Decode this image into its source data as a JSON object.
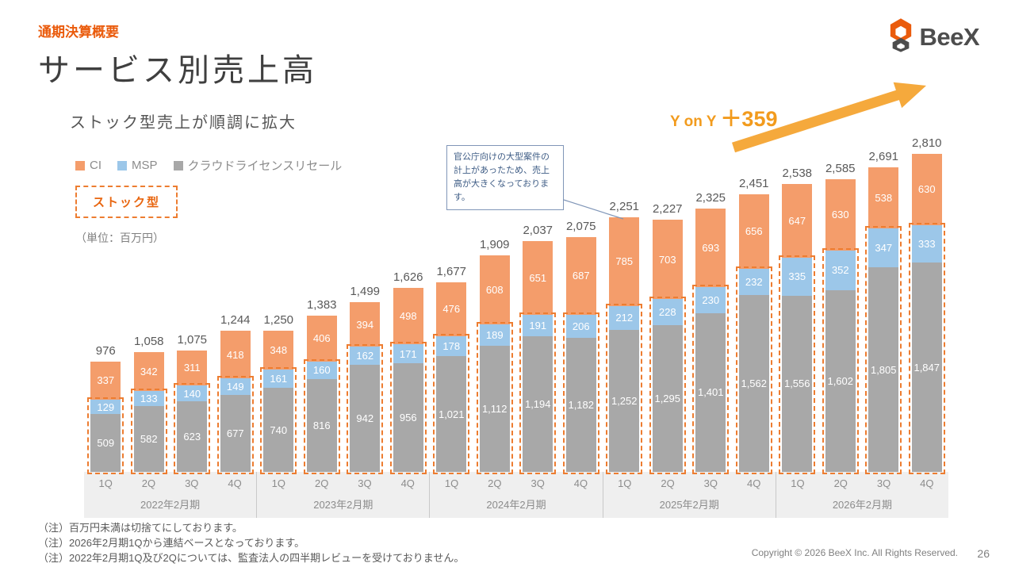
{
  "header": {
    "eyebrow": "通期決算概要",
    "title": "サービス別売上高",
    "subtitle": "ストック型売上が順調に拡大",
    "logo_text": "BeeX"
  },
  "legend": {
    "items": [
      {
        "label": "CI",
        "color": "#F49D6B"
      },
      {
        "label": "MSP",
        "color": "#9CC7E9"
      },
      {
        "label": "クラウドライセンスリセール",
        "color": "#A8A8A8"
      }
    ],
    "stock_label": "ストック型",
    "unit_label": "（単位：百万円）"
  },
  "annotation": {
    "callout_text": "官公庁向けの大型案件の計上があったため、売上高が大きくなっております。",
    "yoy_label": "Y on Y",
    "yoy_value": "＋359",
    "arrow_color": "#F5A93C"
  },
  "chart_data": {
    "type": "bar",
    "stacked": true,
    "unit": "百万円",
    "ylim": [
      0,
      2870
    ],
    "categories": [
      "1Q",
      "2Q",
      "3Q",
      "4Q",
      "1Q",
      "2Q",
      "3Q",
      "4Q",
      "1Q",
      "2Q",
      "3Q",
      "4Q",
      "1Q",
      "2Q",
      "3Q",
      "4Q",
      "1Q",
      "2Q",
      "3Q",
      "4Q"
    ],
    "groups": [
      {
        "label": "2022年2月期",
        "quarters": [
          "1Q",
          "2Q",
          "3Q",
          "4Q"
        ]
      },
      {
        "label": "2023年2月期",
        "quarters": [
          "1Q",
          "2Q",
          "3Q",
          "4Q"
        ]
      },
      {
        "label": "2024年2月期",
        "quarters": [
          "1Q",
          "2Q",
          "3Q",
          "4Q"
        ]
      },
      {
        "label": "2025年2月期",
        "quarters": [
          "1Q",
          "2Q",
          "3Q",
          "4Q"
        ]
      },
      {
        "label": "2026年2月期",
        "quarters": [
          "1Q",
          "2Q",
          "3Q",
          "4Q"
        ]
      }
    ],
    "series": [
      {
        "name": "クラウドライセンスリセール",
        "color": "#A8A8A8",
        "values": [
          509,
          582,
          623,
          677,
          740,
          816,
          942,
          956,
          1021,
          1112,
          1194,
          1182,
          1252,
          1295,
          1401,
          1562,
          1556,
          1602,
          1805,
          1847
        ]
      },
      {
        "name": "MSP",
        "color": "#9CC7E9",
        "values": [
          129,
          133,
          140,
          149,
          161,
          160,
          162,
          171,
          178,
          189,
          191,
          206,
          212,
          228,
          230,
          232,
          335,
          352,
          347,
          333
        ]
      },
      {
        "name": "CI",
        "color": "#F49D6B",
        "values": [
          337,
          342,
          311,
          418,
          348,
          406,
          394,
          498,
          476,
          608,
          651,
          687,
          785,
          703,
          693,
          656,
          647,
          630,
          538,
          630
        ]
      }
    ],
    "totals": [
      976,
      1058,
      1075,
      1244,
      1250,
      1383,
      1499,
      1626,
      1677,
      1909,
      2037,
      2075,
      2251,
      2227,
      2325,
      2451,
      2538,
      2585,
      2691,
      2810
    ],
    "stock_outline_series": [
      "クラウドライセンスリセール",
      "MSP"
    ],
    "legend_position": "top-left",
    "grid": false
  },
  "footnotes": [
    "（注）百万円未満は切捨てにしております。",
    "（注）2026年2月期1Qから連結ベースとなっております。",
    "（注）2022年2月期1Q及び2Qについては、監査法人の四半期レビューを受けておりません。"
  ],
  "footer": {
    "copyright": "Copyright © 2026 BeeX Inc. All Rights Reserved.",
    "page": "26"
  }
}
